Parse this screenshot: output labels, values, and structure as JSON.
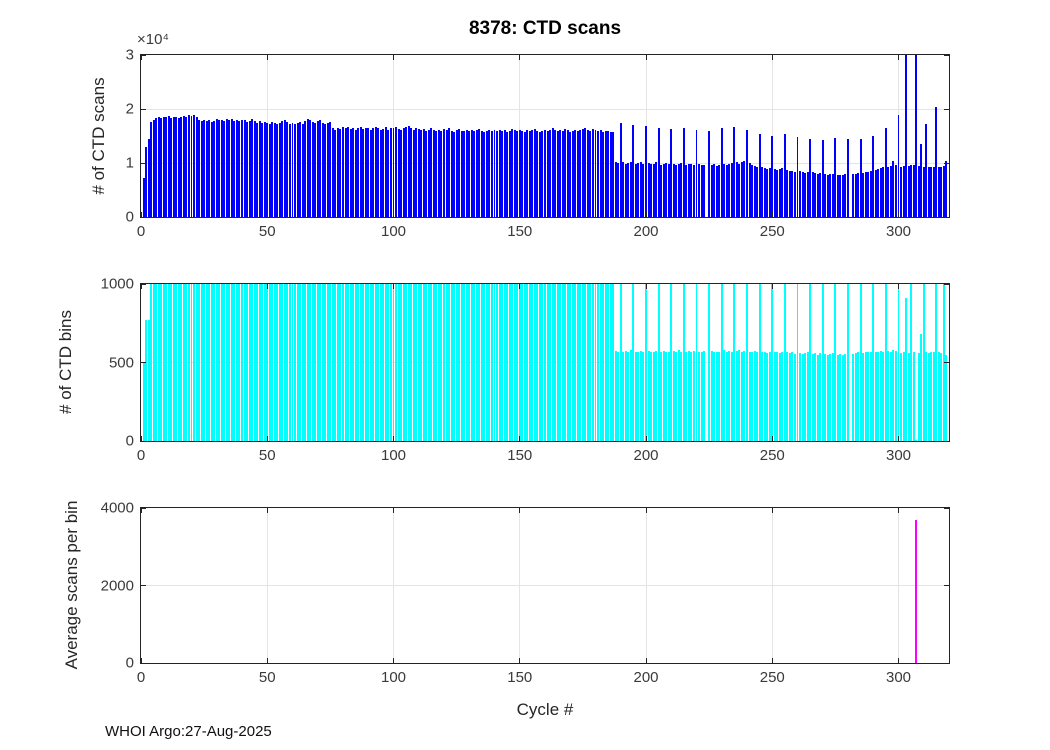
{
  "figure": {
    "footer": "WHOI Argo:27-Aug-2025",
    "background": "#ffffff",
    "axis_color": "#242424",
    "grid_color": "#e4e4e4",
    "tick_label_color": "#3a3a3a"
  },
  "chart_data": [
    {
      "type": "bar",
      "title": "8378: CTD scans",
      "ylabel": "# of CTD scans",
      "y_multiplier": "×10⁴",
      "bar_color": "#0000ff",
      "xlim": [
        0,
        320
      ],
      "ylim": [
        0,
        30000
      ],
      "xticks": [
        0,
        50,
        100,
        150,
        200,
        250,
        300
      ],
      "yticks": [
        0,
        10000,
        20000,
        30000
      ],
      "ytick_labels": [
        "0",
        "1",
        "2",
        "3"
      ],
      "grid": true,
      "x_start": 1,
      "values": [
        7200,
        13000,
        14500,
        17600,
        17900,
        18300,
        18500,
        18400,
        18600,
        18500,
        18700,
        18400,
        18600,
        18500,
        18300,
        18600,
        18700,
        18500,
        18800,
        18700,
        18900,
        18600,
        17900,
        17800,
        18000,
        17700,
        17900,
        17600,
        17800,
        18100,
        17900,
        18000,
        17800,
        18200,
        17900,
        18100,
        17800,
        18000,
        17700,
        17900,
        18000,
        17600,
        17800,
        18100,
        17700,
        17500,
        17700,
        17400,
        17600,
        17500,
        17300,
        17600,
        17400,
        17200,
        17500,
        17800,
        18000,
        17600,
        17300,
        17500,
        17200,
        17400,
        17600,
        17300,
        17800,
        18100,
        17900,
        17600,
        17400,
        17700,
        17900,
        17500,
        17200,
        17400,
        17600,
        16400,
        16200,
        16500,
        16300,
        16600,
        16400,
        16700,
        16300,
        16500,
        16200,
        16400,
        16600,
        16300,
        16500,
        16400,
        16200,
        16500,
        16700,
        16400,
        16100,
        16300,
        16600,
        16200,
        16400,
        16500,
        16700,
        16300,
        16100,
        16400,
        16600,
        16800,
        16500,
        16200,
        16400,
        16300,
        16100,
        16300,
        16000,
        16200,
        16400,
        16100,
        15900,
        16200,
        16000,
        16300,
        16100,
        16400,
        16000,
        15800,
        16100,
        16300,
        16000,
        15900,
        16200,
        16000,
        16200,
        15900,
        16100,
        16300,
        16000,
        15800,
        16000,
        16200,
        15900,
        16100,
        16000,
        16200,
        15900,
        16100,
        15800,
        16000,
        16300,
        16100,
        15900,
        16200,
        16000,
        15800,
        16100,
        15900,
        16100,
        16300,
        16000,
        15800,
        16000,
        16200,
        15900,
        16100,
        16400,
        16100,
        15900,
        16200,
        16000,
        16300,
        16100,
        15800,
        16000,
        16200,
        15900,
        16100,
        16300,
        16500,
        16200,
        16000,
        16300,
        16100,
        15900,
        16100,
        15800,
        16000,
        15900,
        15700,
        15800,
        10200,
        10000,
        17400,
        10100,
        9900,
        10000,
        10200,
        17000,
        9800,
        10000,
        10100,
        9900,
        16800,
        10000,
        9800,
        9900,
        10100,
        16500,
        9700,
        9900,
        10000,
        9800,
        16300,
        9900,
        9700,
        9800,
        10000,
        16500,
        9600,
        9800,
        9900,
        9700,
        16200,
        9800,
        9600,
        9700,
        0,
        16000,
        9600,
        9800,
        9500,
        9700,
        16400,
        9800,
        9600,
        9900,
        10000,
        16700,
        10100,
        9900,
        10200,
        10300,
        16100,
        10000,
        9700,
        9500,
        9300,
        15400,
        9200,
        9000,
        8800,
        9000,
        15000,
        8900,
        8700,
        8800,
        9000,
        15300,
        8700,
        8500,
        8600,
        8400,
        14800,
        8500,
        8300,
        8200,
        8400,
        14500,
        8300,
        8100,
        8000,
        8200,
        14200,
        7900,
        7800,
        7900,
        8000,
        14600,
        7800,
        7700,
        7800,
        7900,
        14400,
        0,
        7900,
        8000,
        8100,
        14500,
        8200,
        8300,
        8400,
        8600,
        15000,
        8700,
        8900,
        9000,
        9200,
        16400,
        9300,
        9500,
        10400,
        9700,
        18900,
        9300,
        9500,
        31500,
        9500,
        9700,
        9600,
        31500,
        9400,
        13500,
        9300,
        17300,
        9200,
        9300,
        9200,
        20300,
        9300,
        9200,
        9400,
        10300
      ]
    },
    {
      "type": "bar",
      "ylabel": "# of CTD bins",
      "bar_color": "#00ffff",
      "xlim": [
        0,
        320
      ],
      "ylim": [
        0,
        1000
      ],
      "xticks": [
        0,
        50,
        100,
        150,
        200,
        250,
        300
      ],
      "yticks": [
        0,
        500,
        1000
      ],
      "ytick_labels": [
        "0",
        "500",
        "1000"
      ],
      "grid": true,
      "x_start": 1,
      "values": [
        500,
        770,
        770,
        1000,
        1000,
        1000,
        1000,
        1000,
        1000,
        1000,
        1000,
        1000,
        1000,
        1000,
        1000,
        1000,
        1000,
        1000,
        1000,
        1000,
        1000,
        1000,
        1000,
        1000,
        1000,
        1000,
        1000,
        1000,
        1000,
        1000,
        1000,
        1000,
        1000,
        1000,
        1000,
        1000,
        1000,
        1000,
        1000,
        1000,
        1000,
        1000,
        1000,
        1000,
        1000,
        1000,
        1000,
        1000,
        1000,
        1000,
        1000,
        1000,
        1000,
        1000,
        1000,
        1000,
        1000,
        1000,
        1000,
        1000,
        1000,
        1000,
        1000,
        1000,
        1000,
        1000,
        1000,
        1000,
        1000,
        1000,
        1000,
        1000,
        1000,
        1000,
        1000,
        1000,
        1000,
        1000,
        1000,
        1000,
        1000,
        1000,
        1000,
        1000,
        1000,
        1000,
        1000,
        1000,
        1000,
        1000,
        1000,
        1000,
        1000,
        1000,
        1000,
        1000,
        1000,
        1000,
        1000,
        1000,
        1000,
        1000,
        1000,
        1000,
        1000,
        1000,
        1000,
        1000,
        1000,
        1000,
        1000,
        1000,
        1000,
        1000,
        1000,
        1000,
        1000,
        1000,
        1000,
        1000,
        1000,
        1000,
        1000,
        1000,
        1000,
        1000,
        1000,
        1000,
        1000,
        1000,
        1000,
        1000,
        1000,
        1000,
        1000,
        1000,
        1000,
        1000,
        1000,
        1000,
        1000,
        1000,
        1000,
        1000,
        1000,
        1000,
        1000,
        1000,
        1000,
        1000,
        1000,
        1000,
        1000,
        1000,
        1000,
        1000,
        1000,
        1000,
        1000,
        1000,
        1000,
        1000,
        1000,
        1000,
        1000,
        1000,
        1000,
        1000,
        1000,
        1000,
        1000,
        1000,
        1000,
        1000,
        1000,
        1000,
        1000,
        1000,
        1000,
        1000,
        1000,
        1000,
        1000,
        1000,
        1000,
        1000,
        1000,
        575,
        570,
        1000,
        565,
        575,
        570,
        580,
        1000,
        570,
        565,
        575,
        570,
        1000,
        575,
        570,
        565,
        575,
        1000,
        570,
        575,
        570,
        565,
        1000,
        575,
        570,
        580,
        570,
        1000,
        565,
        575,
        570,
        575,
        1000,
        570,
        565,
        575,
        0,
        1000,
        575,
        570,
        565,
        570,
        1000,
        580,
        570,
        575,
        570,
        1000,
        575,
        580,
        570,
        575,
        1000,
        570,
        565,
        575,
        570,
        1000,
        565,
        570,
        560,
        565,
        1000,
        570,
        565,
        560,
        570,
        1000,
        565,
        560,
        565,
        555,
        1000,
        560,
        555,
        560,
        565,
        1000,
        555,
        560,
        550,
        560,
        1000,
        555,
        550,
        555,
        560,
        1000,
        550,
        555,
        550,
        555,
        1000,
        0,
        555,
        560,
        565,
        1000,
        560,
        565,
        570,
        565,
        1000,
        570,
        565,
        575,
        570,
        1000,
        575,
        570,
        580,
        575,
        1000,
        560,
        570,
        910,
        560,
        1000,
        570,
        8,
        560,
        680,
        1000,
        570,
        560,
        570,
        570,
        1000,
        570,
        560,
        1000,
        550
      ]
    },
    {
      "type": "bar",
      "ylabel": "Average scans per bin",
      "xlabel": "Cycle #",
      "bar_color": "#ff00ff",
      "xlim": [
        0,
        320
      ],
      "ylim": [
        0,
        4000
      ],
      "xticks": [
        0,
        50,
        100,
        150,
        200,
        250,
        300
      ],
      "yticks": [
        0,
        2000,
        4000
      ],
      "ytick_labels": [
        "0",
        "2000",
        "4000"
      ],
      "grid": true,
      "x": [
        307
      ],
      "values": [
        3700
      ]
    }
  ]
}
